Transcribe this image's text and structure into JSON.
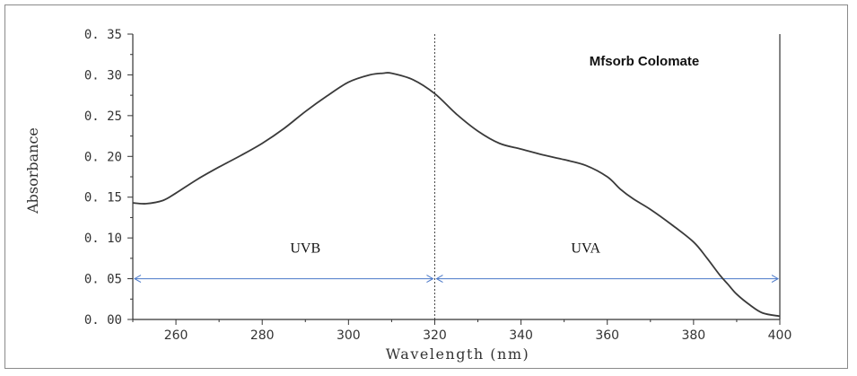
{
  "chart_data": {
    "type": "line",
    "title": "Mfsorb Colomate",
    "xlabel": "Wavelength (nm)",
    "ylabel": "Absorbance",
    "xlim": [
      250,
      400
    ],
    "ylim": [
      0.0,
      0.35
    ],
    "x_ticks": [
      260,
      280,
      300,
      320,
      340,
      360,
      380,
      400
    ],
    "x_tick_labels": [
      "260",
      "280",
      "300",
      "320",
      "340",
      "360",
      "380",
      "400"
    ],
    "y_ticks": [
      0.0,
      0.05,
      0.1,
      0.15,
      0.2,
      0.25,
      0.3,
      0.35
    ],
    "y_tick_labels": [
      "0. 00",
      "0. 05",
      "0. 10",
      "0. 15",
      "0. 20",
      "0. 25",
      "0. 30",
      "0. 35"
    ],
    "grid": false,
    "series": [
      {
        "x": [
          250,
          253,
          257,
          260,
          265,
          270,
          275,
          280,
          285,
          290,
          295,
          300,
          305,
          308,
          310,
          315,
          320,
          325,
          330,
          335,
          340,
          345,
          350,
          355,
          360,
          363,
          366,
          370,
          375,
          380,
          383,
          386,
          388,
          390,
          393,
          396,
          400
        ],
        "y": [
          0.143,
          0.142,
          0.146,
          0.155,
          0.172,
          0.187,
          0.201,
          0.216,
          0.234,
          0.255,
          0.274,
          0.291,
          0.3,
          0.302,
          0.302,
          0.294,
          0.277,
          0.252,
          0.231,
          0.216,
          0.209,
          0.202,
          0.196,
          0.189,
          0.175,
          0.16,
          0.148,
          0.135,
          0.116,
          0.095,
          0.076,
          0.055,
          0.043,
          0.031,
          0.018,
          0.008,
          0.004
        ],
        "color": "#3a3a3a"
      }
    ],
    "annotations": {
      "divider_x": 320,
      "arrow_y": 0.05,
      "regions": [
        {
          "label": "UVB",
          "from": 250,
          "to": 320,
          "label_x": 290,
          "label_y": 0.082
        },
        {
          "label": "UVA",
          "from": 320,
          "to": 400,
          "label_x": 355,
          "label_y": 0.082
        }
      ],
      "arrow_color": "#4a78c8"
    }
  }
}
